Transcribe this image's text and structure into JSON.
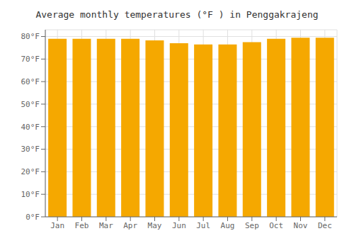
{
  "chart_data": {
    "type": "bar",
    "title": "Average monthly temperatures (°F ) in Penggakrajeng",
    "categories": [
      "Jan",
      "Feb",
      "Mar",
      "Apr",
      "May",
      "Jun",
      "Jul",
      "Aug",
      "Sep",
      "Oct",
      "Nov",
      "Dec"
    ],
    "values": [
      79.0,
      79.0,
      79.0,
      79.0,
      78.3,
      77.0,
      76.5,
      76.5,
      77.5,
      79.0,
      79.5,
      79.5
    ],
    "color": "#F5A800",
    "ylim": [
      0,
      83
    ],
    "yticks": [
      {
        "value": 0,
        "label": "0°F"
      },
      {
        "value": 10,
        "label": "10°F"
      },
      {
        "value": 20,
        "label": "20°F"
      },
      {
        "value": 30,
        "label": "30°F"
      },
      {
        "value": 40,
        "label": "40°F"
      },
      {
        "value": 50,
        "label": "50°F"
      },
      {
        "value": 60,
        "label": "60°F"
      },
      {
        "value": 70,
        "label": "70°F"
      },
      {
        "value": 80,
        "label": "80°F"
      }
    ],
    "grid": true
  }
}
